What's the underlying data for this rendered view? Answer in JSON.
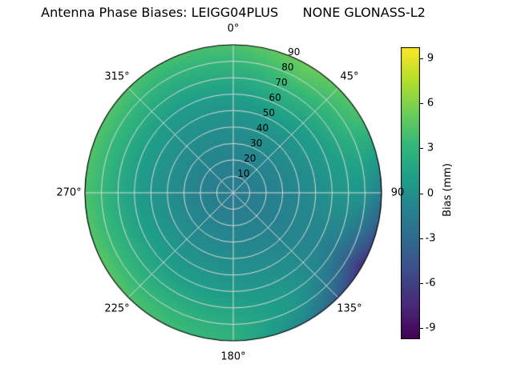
{
  "chart_data": {
    "type": "heatmap",
    "projection": "polar",
    "title": "Antenna Phase Biases: LEIGG04PLUS      NONE GLONASS-L2",
    "theta_zero": "north",
    "theta_direction": "clockwise",
    "angular_ticks": [
      {
        "label": "0°",
        "deg": 0
      },
      {
        "label": "45°",
        "deg": 45
      },
      {
        "label": "90",
        "deg": 90
      },
      {
        "label": "135°",
        "deg": 135
      },
      {
        "label": "180°",
        "deg": 180
      },
      {
        "label": "225°",
        "deg": 225
      },
      {
        "label": "270°",
        "deg": 270
      },
      {
        "label": "315°",
        "deg": 315
      }
    ],
    "radial_ticks": [
      {
        "label": "10",
        "zenith_deg": 10
      },
      {
        "label": "20",
        "zenith_deg": 20
      },
      {
        "label": "30",
        "zenith_deg": 30
      },
      {
        "label": "40",
        "zenith_deg": 40
      },
      {
        "label": "50",
        "zenith_deg": 50
      },
      {
        "label": "60",
        "zenith_deg": 60
      },
      {
        "label": "70",
        "zenith_deg": 70
      },
      {
        "label": "80",
        "zenith_deg": 80
      },
      {
        "label": "90",
        "zenith_deg": 90
      }
    ],
    "radial_label_angle_deg": 22.5,
    "colorbar": {
      "label": "Bias (mm)",
      "colormap": "viridis",
      "vmin": -9.75,
      "vmax": 9.75,
      "ticks": [
        {
          "label": "9",
          "value": 9
        },
        {
          "label": "6",
          "value": 6
        },
        {
          "label": "3",
          "value": 3
        },
        {
          "label": "0",
          "value": 0
        },
        {
          "label": "-3",
          "value": -3
        },
        {
          "label": "-6",
          "value": -6
        },
        {
          "label": "-9",
          "value": -9
        }
      ]
    },
    "grid": {
      "azimuth_deg": [
        0,
        30,
        60,
        90,
        120,
        150,
        180,
        210,
        240,
        270,
        300,
        330
      ],
      "zenith_deg": [
        0,
        10,
        20,
        30,
        40,
        50,
        60,
        70,
        80,
        90
      ],
      "bias_mm": [
        [
          -1.6,
          -1.4,
          -1.1,
          -0.6,
          -0.1,
          0.4,
          1.2,
          2.2,
          3.2,
          4.2
        ],
        [
          -1.6,
          -1.4,
          -1.0,
          -0.5,
          0.1,
          0.8,
          1.8,
          3.0,
          4.3,
          5.4
        ],
        [
          -1.6,
          -1.4,
          -1.1,
          -0.7,
          -0.2,
          0.4,
          1.2,
          2.2,
          3.2,
          4.0
        ],
        [
          -1.6,
          -1.5,
          -1.3,
          -1.0,
          -0.7,
          -0.3,
          0.2,
          0.6,
          0.2,
          -1.5
        ],
        [
          -1.6,
          -1.5,
          -1.4,
          -1.2,
          -1.0,
          -0.9,
          -1.0,
          -1.8,
          -4.0,
          -7.2
        ],
        [
          -1.6,
          -1.5,
          -1.3,
          -1.0,
          -0.7,
          -0.3,
          0.2,
          0.6,
          0.4,
          -1.0
        ],
        [
          -1.6,
          -1.4,
          -1.1,
          -0.7,
          -0.3,
          0.2,
          0.8,
          1.6,
          2.3,
          2.8
        ],
        [
          -1.6,
          -1.4,
          -1.1,
          -0.6,
          -0.1,
          0.4,
          1.1,
          2.0,
          3.0,
          3.8
        ],
        [
          -1.6,
          -1.4,
          -1.1,
          -0.6,
          0.0,
          0.6,
          1.4,
          2.4,
          3.5,
          4.6
        ],
        [
          -1.6,
          -1.4,
          -1.1,
          -0.6,
          -0.1,
          0.4,
          1.2,
          2.2,
          3.3,
          4.2
        ],
        [
          -1.6,
          -1.4,
          -1.1,
          -0.6,
          0.0,
          0.5,
          1.3,
          2.3,
          3.4,
          4.4
        ],
        [
          -1.6,
          -1.4,
          -1.1,
          -0.6,
          -0.1,
          0.3,
          1.0,
          1.9,
          2.9,
          3.9
        ]
      ]
    },
    "colors": {
      "grid_line": "#d9d9d9",
      "outline": "#000000",
      "background": "#ffffff"
    }
  }
}
